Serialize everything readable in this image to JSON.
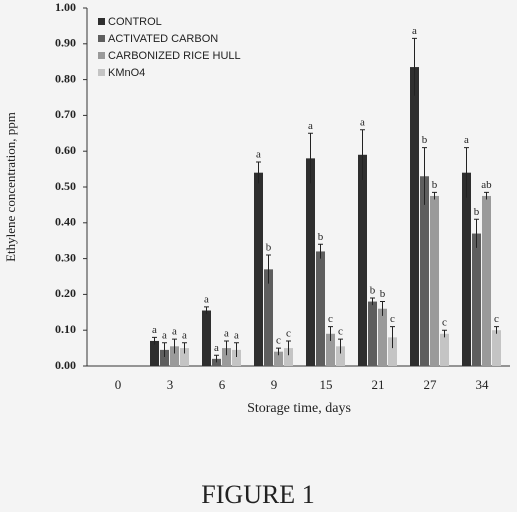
{
  "chart_data": {
    "type": "bar",
    "ylabel": "Ethylene concentration, ppm",
    "xlabel": "Storage time, days",
    "caption": "FIGURE 1",
    "categories": [
      "0",
      "3",
      "6",
      "9",
      "15",
      "21",
      "27",
      "34"
    ],
    "series": [
      {
        "name": "CONTROL",
        "color": "#2e2e2e",
        "values": [
          null,
          0.07,
          0.155,
          0.54,
          0.58,
          0.59,
          0.835,
          0.54
        ],
        "errors": [
          null,
          0.01,
          0.01,
          0.03,
          0.07,
          0.07,
          0.08,
          0.07
        ],
        "letters": [
          null,
          "a",
          "a",
          "a",
          "a",
          "a",
          "a",
          "a"
        ]
      },
      {
        "name": "ACTIVATED CARBON",
        "color": "#5e5e5e",
        "values": [
          null,
          0.045,
          0.02,
          0.27,
          0.32,
          0.18,
          0.53,
          0.37
        ],
        "errors": [
          null,
          0.02,
          0.01,
          0.04,
          0.02,
          0.01,
          0.08,
          0.04
        ],
        "letters": [
          null,
          "a",
          "a",
          "b",
          "b",
          "b",
          "b",
          "b"
        ]
      },
      {
        "name": "CARBONIZED RICE HULL",
        "color": "#9a9a9a",
        "values": [
          null,
          0.055,
          0.05,
          0.04,
          0.09,
          0.16,
          0.475,
          0.475
        ],
        "errors": [
          null,
          0.02,
          0.02,
          0.01,
          0.02,
          0.02,
          0.01,
          0.01
        ],
        "letters": [
          null,
          "a",
          "a",
          "c",
          "c",
          "b",
          "b",
          "ab"
        ]
      },
      {
        "name": "KMnO4",
        "color": "#c4c4c4",
        "values": [
          null,
          0.05,
          0.045,
          0.05,
          0.055,
          0.08,
          0.09,
          0.1
        ],
        "errors": [
          null,
          0.015,
          0.02,
          0.02,
          0.02,
          0.03,
          0.01,
          0.01
        ],
        "letters": [
          null,
          "a",
          "a",
          "c",
          "c",
          "c",
          "c",
          "c"
        ]
      }
    ],
    "ylim": [
      0,
      1
    ],
    "yticks": [
      {
        "value": 0,
        "label": "0.00"
      },
      {
        "value": 0.1,
        "label": "0.10"
      },
      {
        "value": 0.2,
        "label": "0.20"
      },
      {
        "value": 0.3,
        "label": "0.30"
      },
      {
        "value": 0.4,
        "label": "0.40"
      },
      {
        "value": 0.5,
        "label": "0.50"
      },
      {
        "value": 0.6,
        "label": "0.60"
      },
      {
        "value": 0.7,
        "label": "0.70"
      },
      {
        "value": 0.8,
        "label": "0.80"
      },
      {
        "value": 0.9,
        "label": "0.90"
      },
      {
        "value": 1,
        "label": "1.00"
      }
    ],
    "legend": "upper-left"
  }
}
